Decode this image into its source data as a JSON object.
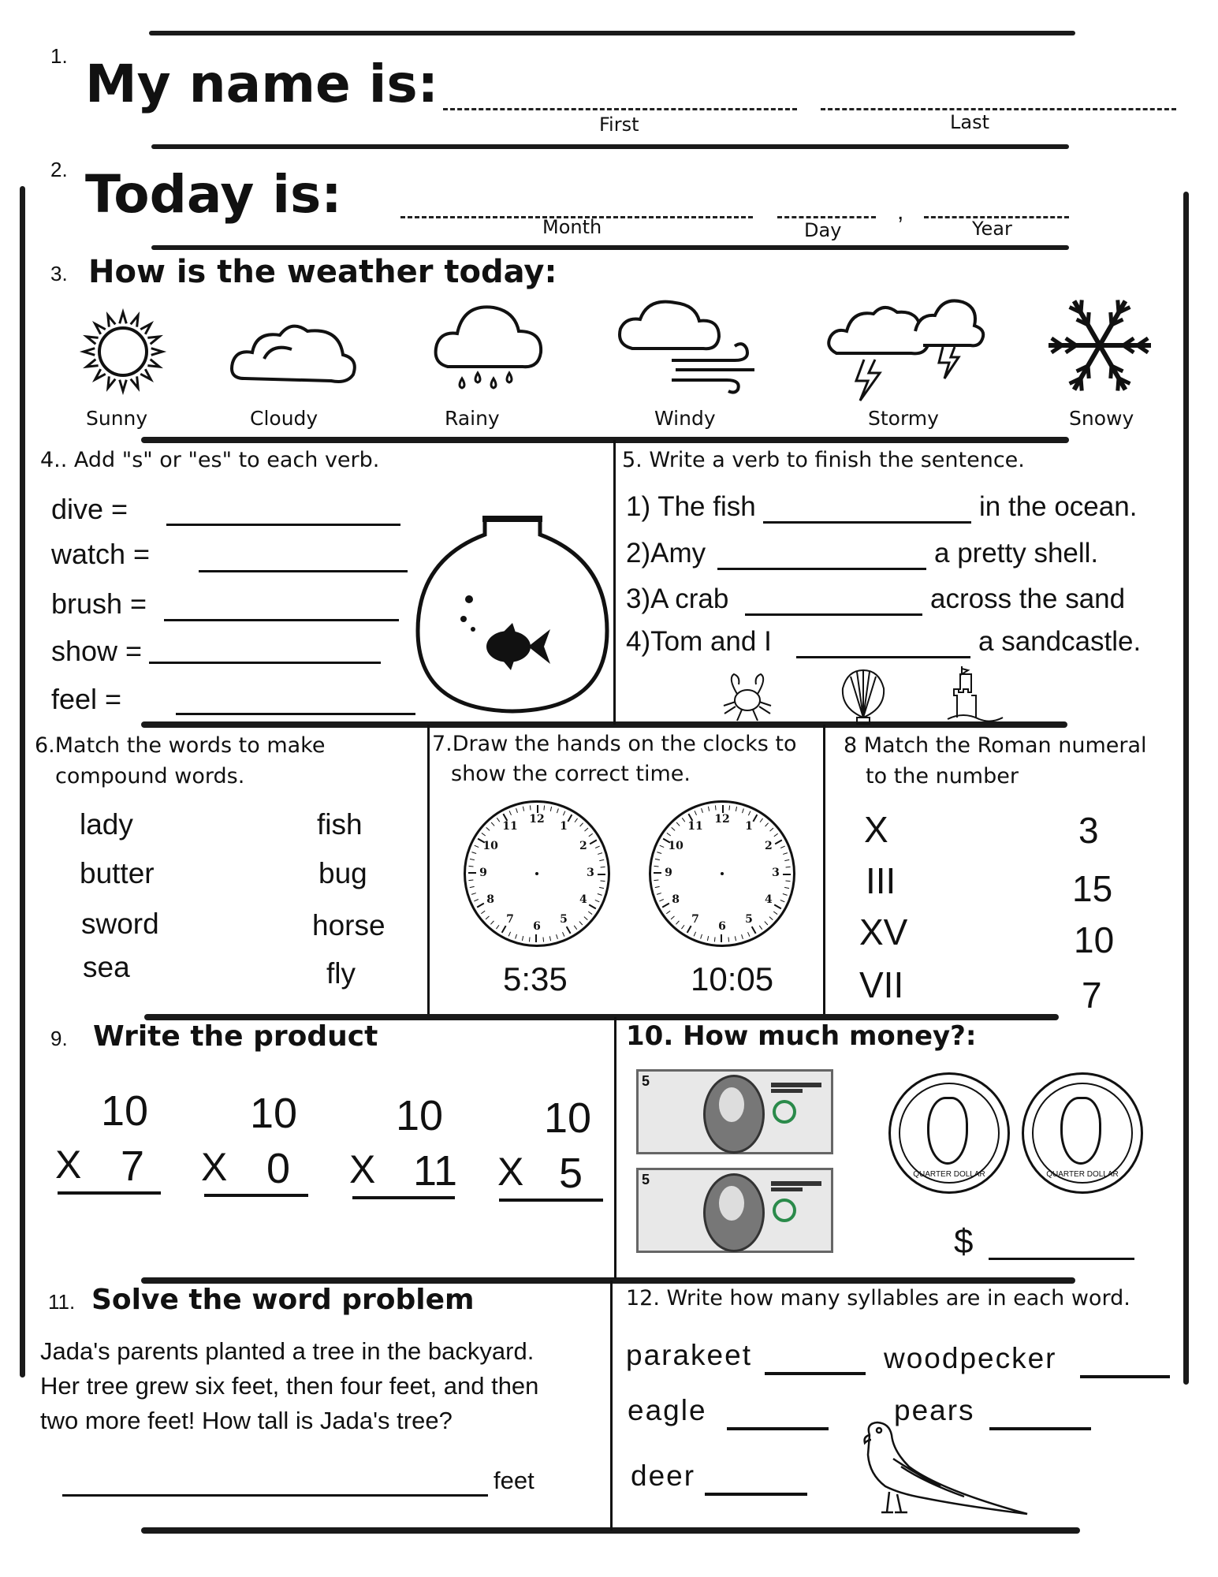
{
  "q1": {
    "number": "1.",
    "label": "My name is:",
    "first": "First",
    "last": "Last"
  },
  "q2": {
    "number": "2.",
    "label": "Today is:",
    "month": "Month",
    "day": "Day",
    "comma": ",",
    "year": "Year"
  },
  "q3": {
    "number": "3.",
    "title": "How is the weather today:",
    "options": [
      {
        "label": "Sunny",
        "icon": "sun-icon"
      },
      {
        "label": "Cloudy",
        "icon": "cloud-icon"
      },
      {
        "label": "Rainy",
        "icon": "rain-icon"
      },
      {
        "label": "Windy",
        "icon": "wind-icon"
      },
      {
        "label": "Stormy",
        "icon": "storm-icon"
      },
      {
        "label": "Snowy",
        "icon": "snowflake-icon"
      }
    ]
  },
  "q4": {
    "title": "4.. Add \"s\" or \"es\" to each verb.",
    "verbs": [
      "dive =",
      "watch =",
      "brush =",
      "show =",
      "feel ="
    ]
  },
  "q5": {
    "title": "5. Write a verb to finish the sentence.",
    "sentences": [
      {
        "before": "1) The fish",
        "after": "in the ocean."
      },
      {
        "before": "2)Amy",
        "after": "a pretty shell."
      },
      {
        "before": "3)A crab",
        "after": "across the sand"
      },
      {
        "before": "4)Tom and I",
        "after": "a sandcastle."
      }
    ]
  },
  "q6": {
    "title_line1": "6.Match the words to make",
    "title_line2": "compound words.",
    "left": [
      "lady",
      "butter",
      "sword",
      "sea"
    ],
    "right": [
      "fish",
      "bug",
      "horse",
      "fly"
    ]
  },
  "q7": {
    "title_line1": "7.Draw the hands on the clocks to",
    "title_line2": "show the correct time.",
    "times": [
      "5:35",
      "10:05"
    ],
    "clock_numbers": [
      "1",
      "2",
      "3",
      "4",
      "5",
      "6",
      "7",
      "8",
      "9",
      "10",
      "11",
      "12"
    ]
  },
  "q8": {
    "title_line1": "8 Match the Roman numeral",
    "title_line2": "to the number",
    "numerals": [
      "X",
      "III",
      "XV",
      "VII"
    ],
    "numbers": [
      "3",
      "15",
      "10",
      "7"
    ]
  },
  "q9": {
    "number": "9.",
    "title": "Write the product",
    "problems": [
      {
        "top": "10",
        "op": "X",
        "bottom": "7"
      },
      {
        "top": "10",
        "op": "X",
        "bottom": "0"
      },
      {
        "top": "10",
        "op": "X",
        "bottom": "11"
      },
      {
        "top": "10",
        "op": "X",
        "bottom": "5"
      }
    ]
  },
  "q10": {
    "title": "10. How much money?:",
    "dollar_sign": "$",
    "bills": [
      "5",
      "5"
    ],
    "coins": [
      "QUARTER DOLLAR",
      "QUARTER DOLLAR"
    ]
  },
  "q11": {
    "number": "11.",
    "title": "Solve the word problem",
    "lines": [
      "Jada's parents planted a tree in the backyard.",
      "Her tree grew six feet, then four feet, and then",
      "two more feet! How tall is Jada's tree?"
    ],
    "unit": "feet"
  },
  "q12": {
    "title": "12. Write how many syllables are in each word.",
    "words": [
      "parakeet",
      "woodpecker",
      "eagle",
      "pears",
      "deer"
    ]
  }
}
